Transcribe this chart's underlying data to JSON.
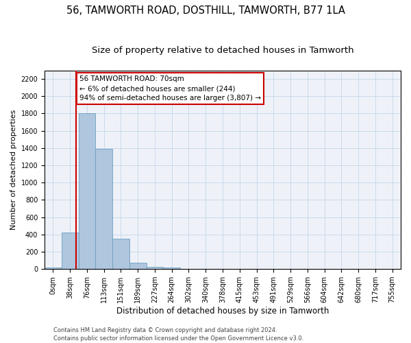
{
  "title1": "56, TAMWORTH ROAD, DOSTHILL, TAMWORTH, B77 1LA",
  "title2": "Size of property relative to detached houses in Tamworth",
  "xlabel": "Distribution of detached houses by size in Tamworth",
  "ylabel": "Number of detached properties",
  "bar_values": [
    15,
    420,
    1800,
    1390,
    350,
    75,
    25,
    15,
    0,
    0,
    0,
    0,
    0,
    0,
    0,
    0,
    0,
    0,
    0,
    0,
    0
  ],
  "x_labels": [
    "0sqm",
    "38sqm",
    "76sqm",
    "113sqm",
    "151sqm",
    "189sqm",
    "227sqm",
    "264sqm",
    "302sqm",
    "340sqm",
    "378sqm",
    "415sqm",
    "453sqm",
    "491sqm",
    "529sqm",
    "566sqm",
    "604sqm",
    "642sqm",
    "680sqm",
    "717sqm",
    "755sqm"
  ],
  "bar_color": "#aec6de",
  "bar_edge_color": "#6a9fc0",
  "marker_color": "#cc0000",
  "annotation_line1": "56 TAMWORTH ROAD: 70sqm",
  "annotation_line2": "← 6% of detached houses are smaller (244)",
  "annotation_line3": "94% of semi-detached houses are larger (3,807) →",
  "annotation_box_color": "#ffffff",
  "annotation_box_edge": "#cc0000",
  "ylim": [
    0,
    2300
  ],
  "yticks": [
    0,
    200,
    400,
    600,
    800,
    1000,
    1200,
    1400,
    1600,
    1800,
    2000,
    2200
  ],
  "footer1": "Contains HM Land Registry data © Crown copyright and database right 2024.",
  "footer2": "Contains public sector information licensed under the Open Government Licence v3.0.",
  "bg_color": "#eef2f8",
  "grid_color": "#c5d5e8",
  "title1_fontsize": 10.5,
  "title2_fontsize": 9.5,
  "ylabel_fontsize": 8,
  "xlabel_fontsize": 8.5,
  "tick_fontsize": 7,
  "annot_fontsize": 7.5,
  "footer_fontsize": 6,
  "red_line_x": 1.84
}
